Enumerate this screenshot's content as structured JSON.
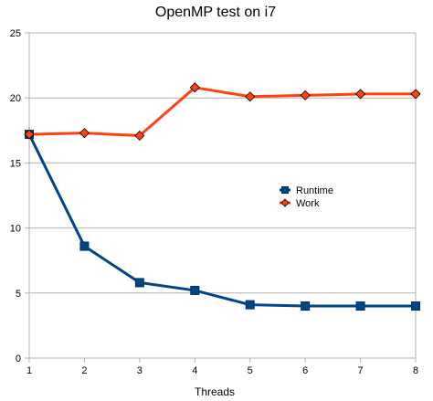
{
  "chart_data": {
    "type": "line",
    "title": "OpenMP test on i7",
    "xlabel": "Threads",
    "ylabel": "",
    "x": [
      1,
      2,
      3,
      4,
      5,
      6,
      7,
      8
    ],
    "xlim": [
      1,
      8
    ],
    "ylim": [
      0,
      25
    ],
    "yticks": [
      0,
      5,
      10,
      15,
      20,
      25
    ],
    "grid": "horizontal",
    "legend_position": "right",
    "series": [
      {
        "name": "Runtime",
        "color": "#004586",
        "marker": "square",
        "values": [
          17.2,
          8.6,
          5.8,
          5.2,
          4.1,
          4.0,
          4.0,
          4.0
        ]
      },
      {
        "name": "Work",
        "color": "#ff420e",
        "marker": "diamond",
        "values": [
          17.2,
          17.3,
          17.1,
          20.8,
          20.1,
          20.2,
          20.3,
          20.3
        ]
      }
    ]
  }
}
